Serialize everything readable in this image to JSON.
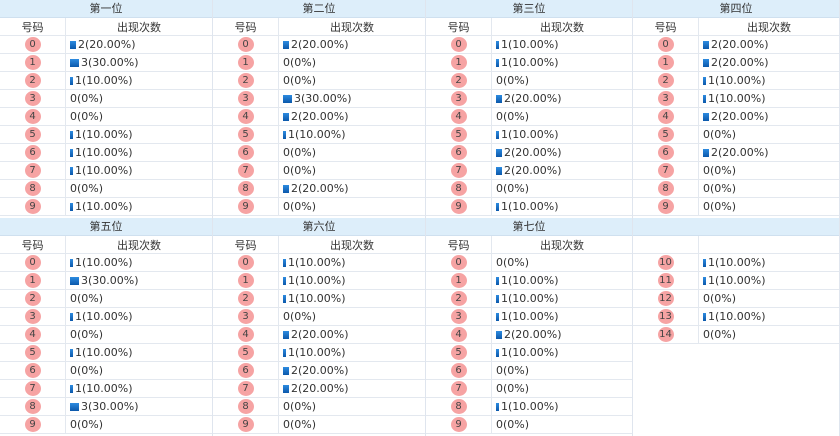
{
  "labels": {
    "number": "号码",
    "count": "出现次数"
  },
  "bar_color": "#1a6fc9",
  "ball_color": "#f6a3a3",
  "header_color": "#ddeefa",
  "positions": [
    {
      "title": "第一位",
      "rows": [
        [
          "0",
          "2(20.00%)",
          20
        ],
        [
          "1",
          "3(30.00%)",
          30
        ],
        [
          "2",
          "1(10.00%)",
          10
        ],
        [
          "3",
          "0(0%)",
          0
        ],
        [
          "4",
          "0(0%)",
          0
        ],
        [
          "5",
          "1(10.00%)",
          10
        ],
        [
          "6",
          "1(10.00%)",
          10
        ],
        [
          "7",
          "1(10.00%)",
          10
        ],
        [
          "8",
          "0(0%)",
          0
        ],
        [
          "9",
          "1(10.00%)",
          10
        ]
      ]
    },
    {
      "title": "第二位",
      "rows": [
        [
          "0",
          "2(20.00%)",
          20
        ],
        [
          "1",
          "0(0%)",
          0
        ],
        [
          "2",
          "0(0%)",
          0
        ],
        [
          "3",
          "3(30.00%)",
          30
        ],
        [
          "4",
          "2(20.00%)",
          20
        ],
        [
          "5",
          "1(10.00%)",
          10
        ],
        [
          "6",
          "0(0%)",
          0
        ],
        [
          "7",
          "0(0%)",
          0
        ],
        [
          "8",
          "2(20.00%)",
          20
        ],
        [
          "9",
          "0(0%)",
          0
        ]
      ]
    },
    {
      "title": "第三位",
      "rows": [
        [
          "0",
          "1(10.00%)",
          10
        ],
        [
          "1",
          "1(10.00%)",
          10
        ],
        [
          "2",
          "0(0%)",
          0
        ],
        [
          "3",
          "2(20.00%)",
          20
        ],
        [
          "4",
          "0(0%)",
          0
        ],
        [
          "5",
          "1(10.00%)",
          10
        ],
        [
          "6",
          "2(20.00%)",
          20
        ],
        [
          "7",
          "2(20.00%)",
          20
        ],
        [
          "8",
          "0(0%)",
          0
        ],
        [
          "9",
          "1(10.00%)",
          10
        ]
      ]
    },
    {
      "title": "第四位",
      "rows": [
        [
          "0",
          "2(20.00%)",
          20
        ],
        [
          "1",
          "2(20.00%)",
          20
        ],
        [
          "2",
          "1(10.00%)",
          10
        ],
        [
          "3",
          "1(10.00%)",
          10
        ],
        [
          "4",
          "2(20.00%)",
          20
        ],
        [
          "5",
          "0(0%)",
          0
        ],
        [
          "6",
          "2(20.00%)",
          20
        ],
        [
          "7",
          "0(0%)",
          0
        ],
        [
          "8",
          "0(0%)",
          0
        ],
        [
          "9",
          "0(0%)",
          0
        ]
      ]
    },
    {
      "title": "第五位",
      "rows": [
        [
          "0",
          "1(10.00%)",
          10
        ],
        [
          "1",
          "3(30.00%)",
          30
        ],
        [
          "2",
          "0(0%)",
          0
        ],
        [
          "3",
          "1(10.00%)",
          10
        ],
        [
          "4",
          "0(0%)",
          0
        ],
        [
          "5",
          "1(10.00%)",
          10
        ],
        [
          "6",
          "0(0%)",
          0
        ],
        [
          "7",
          "1(10.00%)",
          10
        ],
        [
          "8",
          "3(30.00%)",
          30
        ],
        [
          "9",
          "0(0%)",
          0
        ]
      ]
    },
    {
      "title": "第六位",
      "rows": [
        [
          "0",
          "1(10.00%)",
          10
        ],
        [
          "1",
          "1(10.00%)",
          10
        ],
        [
          "2",
          "1(10.00%)",
          10
        ],
        [
          "3",
          "0(0%)",
          0
        ],
        [
          "4",
          "2(20.00%)",
          20
        ],
        [
          "5",
          "1(10.00%)",
          10
        ],
        [
          "6",
          "2(20.00%)",
          20
        ],
        [
          "7",
          "2(20.00%)",
          20
        ],
        [
          "8",
          "0(0%)",
          0
        ],
        [
          "9",
          "0(0%)",
          0
        ]
      ]
    },
    {
      "title": "第七位",
      "rows": [
        [
          "0",
          "0(0%)",
          0
        ],
        [
          "1",
          "1(10.00%)",
          10
        ],
        [
          "2",
          "1(10.00%)",
          10
        ],
        [
          "3",
          "1(10.00%)",
          10
        ],
        [
          "4",
          "2(20.00%)",
          20
        ],
        [
          "5",
          "1(10.00%)",
          10
        ],
        [
          "6",
          "0(0%)",
          0
        ],
        [
          "7",
          "0(0%)",
          0
        ],
        [
          "8",
          "1(10.00%)",
          10
        ],
        [
          "9",
          "0(0%)",
          0
        ]
      ]
    },
    {
      "title": "",
      "hide_sub": true,
      "rows": [
        [
          "10",
          "1(10.00%)",
          10
        ],
        [
          "11",
          "1(10.00%)",
          10
        ],
        [
          "12",
          "0(0%)",
          0
        ],
        [
          "13",
          "1(10.00%)",
          10
        ],
        [
          "14",
          "0(0%)",
          0
        ]
      ]
    }
  ]
}
